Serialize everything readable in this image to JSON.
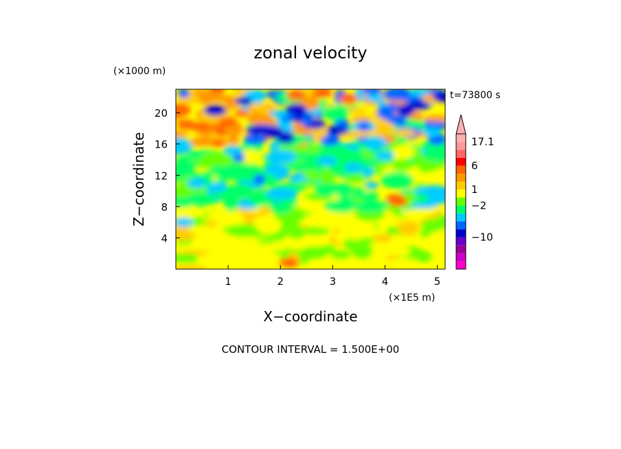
{
  "chart_data": {
    "type": "heatmap",
    "title": "zonal velocity",
    "xlabel": "X−coordinate",
    "ylabel": "Z−coordinate",
    "x_unit": "(×1E5 m)",
    "y_unit": "(×1000 m)",
    "time_label": "t=73800 s",
    "footer": "CONTOUR INTERVAL = 1.500E+00",
    "xlim": [
      0,
      5.15
    ],
    "ylim": [
      0,
      23
    ],
    "x_ticks": [
      1,
      2,
      3,
      4,
      5
    ],
    "x_tick_labels": [
      "1",
      "2",
      "3",
      "4",
      "5"
    ],
    "y_ticks": [
      4,
      8,
      12,
      16,
      20
    ],
    "y_tick_labels": [
      "4",
      "8",
      "12",
      "16",
      "20"
    ],
    "grid": false,
    "colorbar": {
      "position": "right",
      "extend": "max",
      "colors": [
        "#ff00cc",
        "#cc00cc",
        "#990099",
        "#6600cc",
        "#0000cc",
        "#0066ff",
        "#00ccff",
        "#00ff66",
        "#66ff00",
        "#ffff00",
        "#ffcc00",
        "#ff9900",
        "#ff6600",
        "#ff0000",
        "#ff6666",
        "#ff9999",
        "#ffb0b0"
      ],
      "tick_labels": [
        {
          "value": "17.1",
          "at_level": 15
        },
        {
          "value": "6",
          "at_level": 12
        },
        {
          "value": "1",
          "at_level": 9
        },
        {
          "value": "−2",
          "at_level": 7
        },
        {
          "value": "−10",
          "at_level": 3
        }
      ]
    },
    "field_description_regions": [
      {
        "z_range": [
          20,
          23
        ],
        "dominant": "blue/cyan/orange mix"
      },
      {
        "z_range": [
          16,
          20
        ],
        "dominant": "orange/red at left, blue/navy in middle"
      },
      {
        "z_range": [
          8,
          16
        ],
        "dominant": "green/yellow"
      },
      {
        "z_range": [
          0,
          8
        ],
        "dominant": "yellow/orange"
      }
    ]
  }
}
